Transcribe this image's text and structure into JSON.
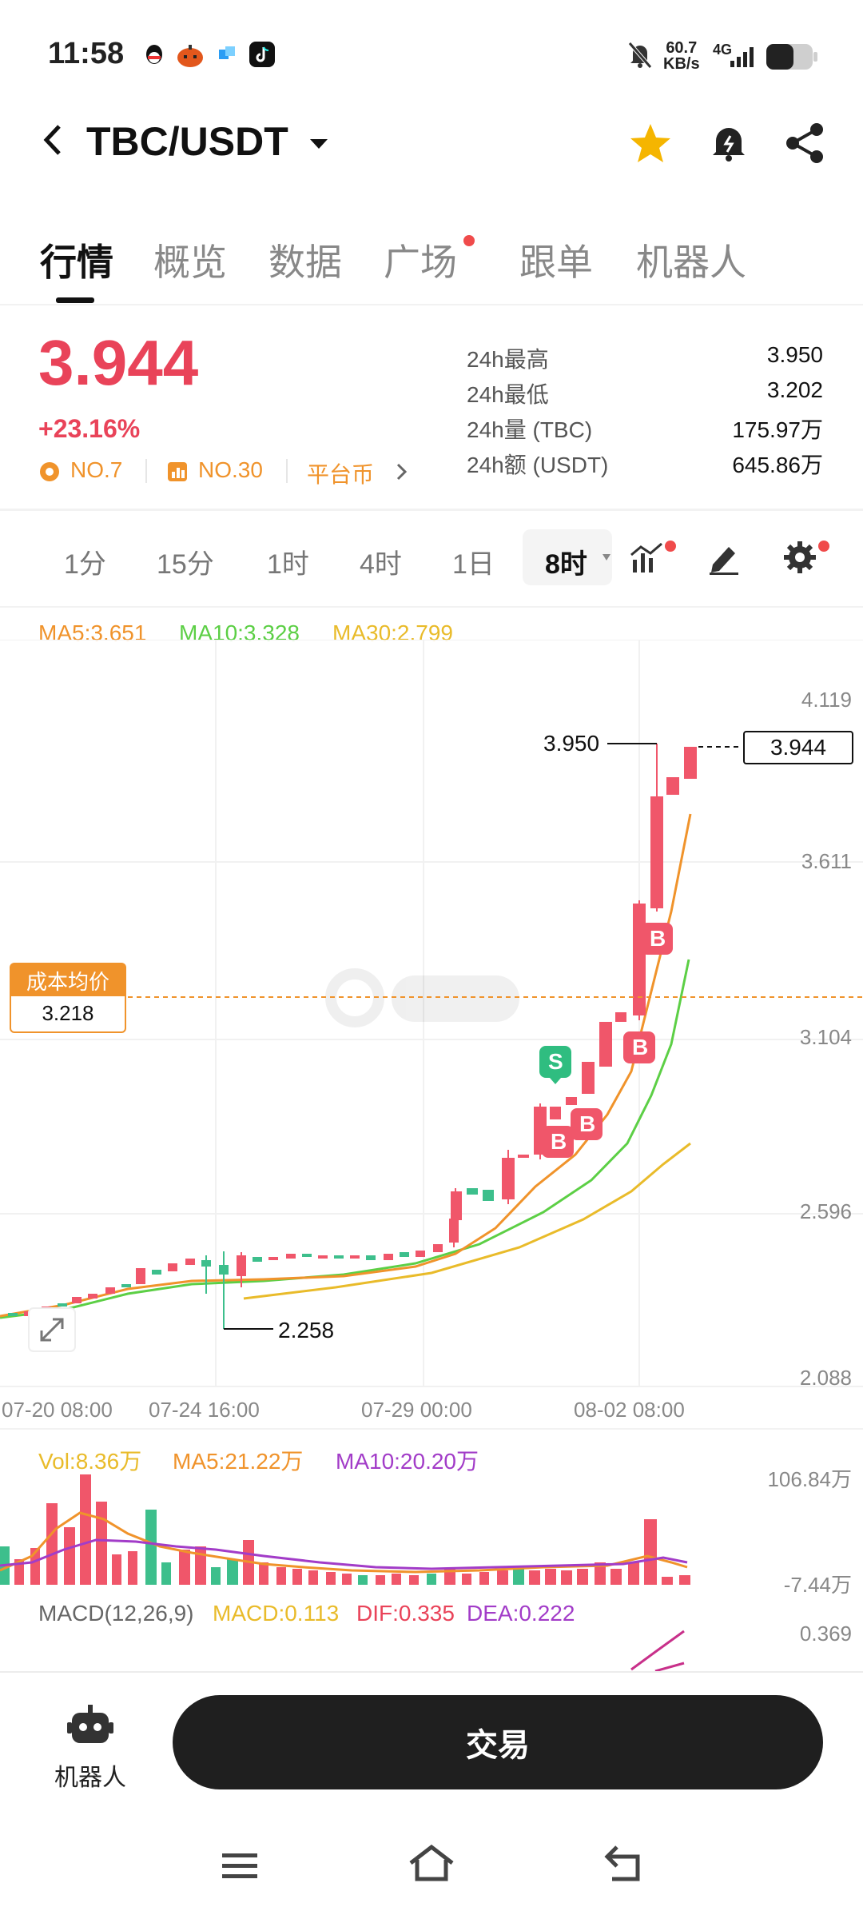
{
  "status_bar": {
    "time": "11:58",
    "net_speed_value": "60.7",
    "net_speed_unit": "KB/s",
    "network": "4G"
  },
  "header": {
    "pair": "TBC/USDT"
  },
  "tabs": [
    {
      "label": "行情"
    },
    {
      "label": "概览"
    },
    {
      "label": "数据"
    },
    {
      "label": "广场"
    },
    {
      "label": "跟单"
    },
    {
      "label": "机器人"
    }
  ],
  "price": {
    "last": "3.944",
    "change": "+23.16%",
    "rank1": "NO.7",
    "rank2": "NO.30",
    "category": "平台币"
  },
  "stats": [
    {
      "label": "24h最高",
      "value": "3.950"
    },
    {
      "label": "24h最低",
      "value": "3.202"
    },
    {
      "label": "24h量 (TBC)",
      "value": "175.97万"
    },
    {
      "label": "24h额 (USDT)",
      "value": "645.86万"
    }
  ],
  "intervals": [
    "1分",
    "15分",
    "1时",
    "4时",
    "1日",
    "8时"
  ],
  "chart": {
    "ma5": "MA5:3.651",
    "ma10": "MA10:3.328",
    "ma30": "MA30:2.799",
    "y_axis": [
      "4.119",
      "3.611",
      "3.104",
      "2.596",
      "2.088"
    ],
    "x_axis": [
      "07-20 08:00",
      "07-24 16:00",
      "07-29 00:00",
      "08-02 08:00"
    ],
    "high_label": "3.950",
    "low_label": "2.258",
    "last_price_tag": "3.944",
    "cost_avg_label": "成本均价",
    "cost_avg_value": "3.218",
    "markers": [
      {
        "text": "S"
      },
      {
        "text": "B"
      },
      {
        "text": "B"
      },
      {
        "text": "B"
      },
      {
        "text": "B"
      }
    ],
    "colors": {
      "up": "#f0566a",
      "down": "#3dbf8c",
      "ma5": "#f0932b",
      "ma10": "#5ccf45",
      "ma30": "#e9bb2a"
    }
  },
  "volume": {
    "vol": "Vol:8.36万",
    "ma5": "MA5:21.22万",
    "ma10": "MA10:20.20万",
    "max": "106.84万",
    "min": "-7.44万"
  },
  "macd": {
    "title": "MACD(12,26,9)",
    "macd": "MACD:0.113",
    "dif": "DIF:0.335",
    "dea": "DEA:0.222",
    "max": "0.369"
  },
  "bottom": {
    "robot_label": "机器人",
    "trade_label": "交易"
  }
}
